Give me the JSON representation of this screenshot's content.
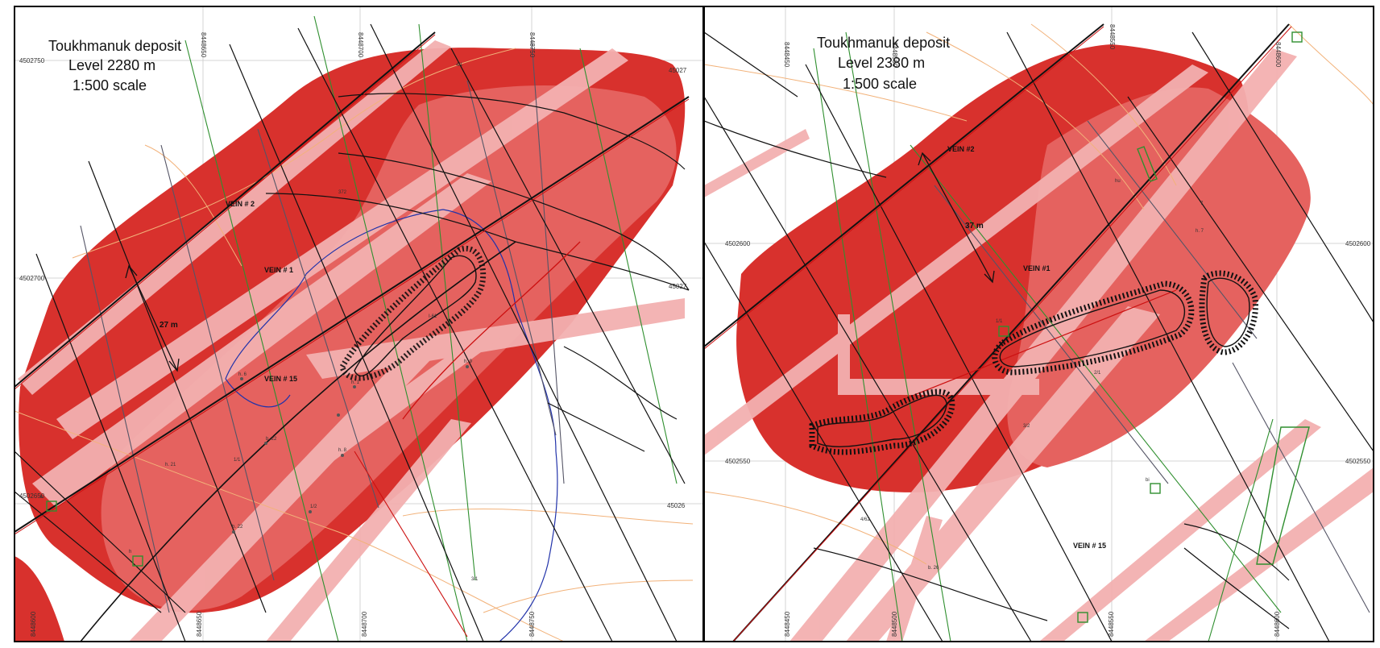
{
  "colors": {
    "zone_dark": "#d8312d",
    "zone_mid": "#e5625f",
    "zone_light": "#f3b0b0",
    "fault": "#111111",
    "drill_green": "#2f8f2f",
    "drill_gray": "#555566",
    "contour_orange": "#f2b27a",
    "contour_blue": "#2233aa",
    "vein_red": "#cc1111",
    "frame": "#000000"
  },
  "maps": [
    {
      "title_1": "Toukhmanuk deposit",
      "title_2": "Level  2280 m",
      "title_3": "1:500  scale",
      "veins": [
        "VEIN # 2",
        "VEIN # 1",
        "VEIN # 15"
      ],
      "distance": "27 m",
      "coords": {
        "left": [
          "4502750",
          "4502700",
          "4502650"
        ],
        "right": [
          "45027",
          "45027",
          "45026"
        ],
        "top": [
          "8448650",
          "8448700",
          "8448750"
        ],
        "bottom": [
          "8448600",
          "8448650",
          "8448700",
          "8448750"
        ]
      },
      "holes": [
        "372",
        "h. 6",
        "h. 1",
        "h. 21",
        "b. 22",
        "h. 9",
        "h. 8",
        "b. 22",
        "I-61",
        "1/1",
        "1/2",
        "3/1",
        "4/1",
        "h",
        "b"
      ]
    },
    {
      "title_1": "Toukhmanuk deposit",
      "title_2": "Level  2380 m",
      "title_3": "1:500  scale",
      "veins": [
        "VEIN #2",
        "VEIN #1",
        "VEIN # 15"
      ],
      "distance": "37 m",
      "coords": {
        "left": [
          "4502600",
          "4502550"
        ],
        "right": [
          "4502600",
          "4502550"
        ],
        "top": [
          "8448450",
          "8448500",
          "8448550",
          "8448600"
        ],
        "bottom": [
          "8448450",
          "8448500",
          "8448550",
          "8448600"
        ]
      },
      "holes": [
        "hu",
        "h. 7",
        "7",
        "4/62",
        "b. 26",
        "bi",
        "1/1",
        "2/1",
        "3/2"
      ]
    }
  ]
}
